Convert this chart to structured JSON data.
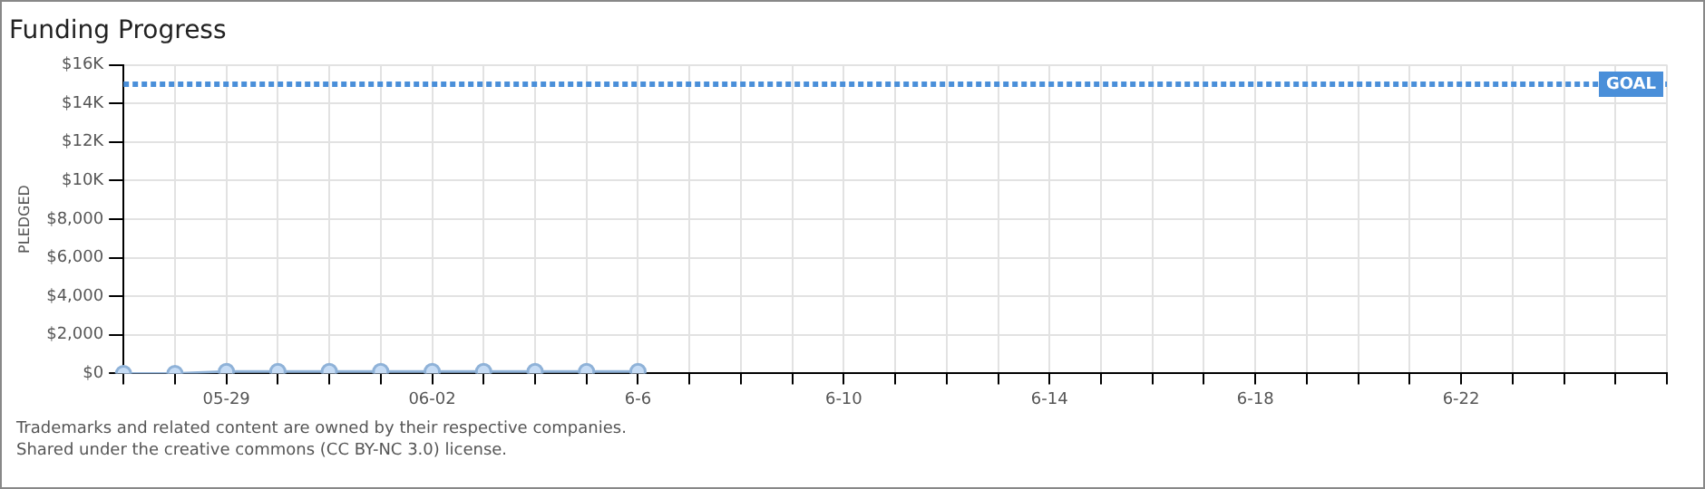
{
  "chart_data": {
    "type": "line",
    "title": "Funding Progress",
    "ylabel": "PLEDGED",
    "categories": [
      null,
      null,
      "05-29",
      null,
      null,
      null,
      "06-02",
      null,
      null,
      null,
      "6-6",
      null,
      null,
      null,
      "6-10",
      null,
      null,
      null,
      "6-14",
      null,
      null,
      null,
      "6-18",
      null,
      null,
      null,
      "6-22",
      null,
      null,
      null,
      null
    ],
    "series": [
      {
        "color": "#8fb2d8",
        "values": [
          0,
          0,
          100,
          100,
          100,
          100,
          100,
          100,
          100,
          100,
          100,
          null,
          null,
          null,
          null,
          null,
          null,
          null,
          null,
          null,
          null,
          null,
          null,
          null,
          null,
          null,
          null,
          null,
          null,
          null,
          null
        ]
      }
    ],
    "ylim": [
      0,
      16000
    ],
    "yticks": [
      {
        "value": 0,
        "label": "$0"
      },
      {
        "value": 2000,
        "label": "$2,000"
      },
      {
        "value": 4000,
        "label": "$4,000"
      },
      {
        "value": 6000,
        "label": "$6,000"
      },
      {
        "value": 8000,
        "label": "$8,000"
      },
      {
        "value": 10000,
        "label": "$10K"
      },
      {
        "value": 12000,
        "label": "$12K"
      },
      {
        "value": 14000,
        "label": "$14K"
      },
      {
        "value": 16000,
        "label": "$16K"
      }
    ],
    "ref_lines": [
      {
        "axis": "y",
        "value": 15000,
        "label": "GOAL",
        "color": "#4a8fd9",
        "line_style": "dotted"
      }
    ],
    "grid": true,
    "marker": "circle",
    "line_style": "solid",
    "legend": false,
    "annotations": [
      "Trademarks and related content are owned by their respective companies.",
      "Shared under the creative commons (CC BY-NC 3.0) license."
    ]
  }
}
